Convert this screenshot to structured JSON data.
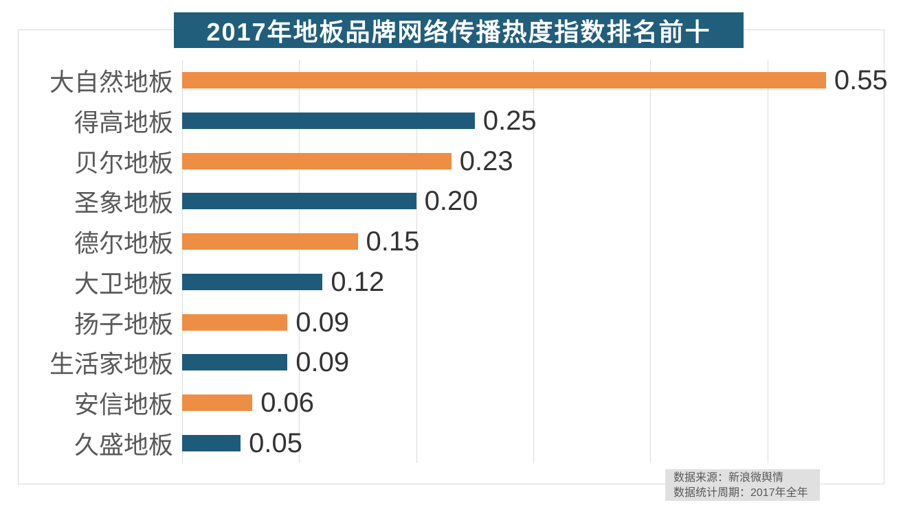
{
  "title": "2017年地板品牌网络传播热度指数排名前十",
  "source_note": {
    "line1": "数据来源：新浪微舆情",
    "line2": "数据统计周期：2017年全年"
  },
  "colors": {
    "title_background": "#205e7c",
    "title_text": "#ffffff",
    "bar_orange": "#ee8d44",
    "bar_teal": "#1e5b7a",
    "gridline": "#dcdcdc",
    "chart_border": "#d9d9d9",
    "category_label_text": "#595959",
    "value_label_text": "#333333",
    "source_box_background": "#e0e0e0",
    "source_box_text": "#595959"
  },
  "chart_data": {
    "type": "bar",
    "orientation": "horizontal",
    "title": "2017年地板品牌网络传播热度指数排名前十",
    "categories": [
      "大自然地板",
      "得高地板",
      "贝尔地板",
      "圣象地板",
      "德尔地板",
      "大卫地板",
      "扬子地板",
      "生活家地板",
      "安信地板",
      "久盛地板"
    ],
    "values": [
      0.55,
      0.25,
      0.23,
      0.2,
      0.15,
      0.12,
      0.09,
      0.09,
      0.06,
      0.05
    ],
    "value_labels": [
      "0.55",
      "0.25",
      "0.23",
      "0.20",
      "0.15",
      "0.12",
      "0.09",
      "0.09",
      "0.06",
      "0.05"
    ],
    "xlim": [
      0,
      0.6
    ],
    "gridline_interval": 0.1,
    "grid": true,
    "legend": false,
    "bar_color_pattern": [
      "#ee8d44",
      "#1e5b7a"
    ],
    "xlabel": "",
    "ylabel": ""
  }
}
